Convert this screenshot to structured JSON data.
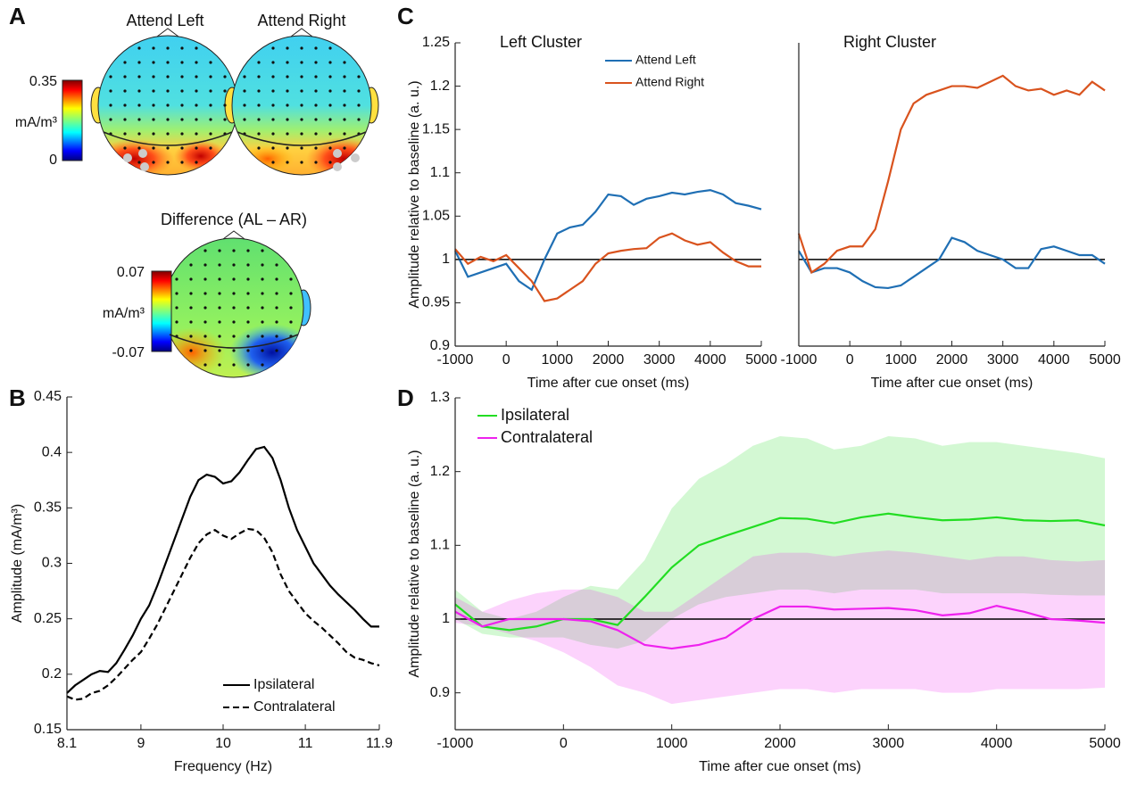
{
  "figure": {
    "panel_labels": [
      "A",
      "B",
      "C",
      "D"
    ],
    "topomaps": [
      {
        "title": "Attend Left"
      },
      {
        "title": "Attend Right"
      },
      {
        "title": "Difference (AL – AR)"
      }
    ],
    "colorbars": [
      {
        "max": 0.35,
        "unit": "mA/m³",
        "min": 0
      },
      {
        "max": 0.07,
        "unit": "mA/m³",
        "min": -0.07
      }
    ]
  },
  "chart_data": [
    {
      "type": "line",
      "xlabel": "Frequency (Hz)",
      "ylabel": "Amplitude (mA/m³)",
      "x": [
        8.1,
        8.2,
        8.3,
        8.4,
        8.5,
        8.6,
        8.7,
        8.8,
        8.9,
        9.0,
        9.1,
        9.2,
        9.3,
        9.4,
        9.5,
        9.6,
        9.7,
        9.8,
        9.9,
        10.0,
        10.1,
        10.2,
        10.3,
        10.4,
        10.5,
        10.6,
        10.7,
        10.8,
        10.9,
        11.0,
        11.1,
        11.2,
        11.3,
        11.4,
        11.5,
        11.6,
        11.7,
        11.8,
        11.9
      ],
      "series": [
        {
          "name": "Ipsilateral",
          "color": "#000000",
          "dashed": false,
          "values": [
            0.183,
            0.19,
            0.195,
            0.2,
            0.203,
            0.202,
            0.21,
            0.222,
            0.235,
            0.25,
            0.262,
            0.28,
            0.3,
            0.32,
            0.34,
            0.36,
            0.375,
            0.38,
            0.378,
            0.372,
            0.374,
            0.382,
            0.393,
            0.403,
            0.405,
            0.395,
            0.375,
            0.35,
            0.33,
            0.315,
            0.3,
            0.29,
            0.28,
            0.272,
            0.265,
            0.258,
            0.25,
            0.243,
            0.243
          ]
        },
        {
          "name": "Contralateral",
          "color": "#000000",
          "dashed": true,
          "values": [
            0.18,
            0.177,
            0.178,
            0.183,
            0.185,
            0.19,
            0.197,
            0.205,
            0.213,
            0.22,
            0.232,
            0.245,
            0.26,
            0.275,
            0.29,
            0.305,
            0.318,
            0.326,
            0.33,
            0.325,
            0.322,
            0.327,
            0.331,
            0.33,
            0.323,
            0.31,
            0.29,
            0.275,
            0.265,
            0.255,
            0.248,
            0.242,
            0.235,
            0.228,
            0.22,
            0.215,
            0.213,
            0.21,
            0.208
          ]
        }
      ],
      "xlim": [
        8.1,
        11.9
      ],
      "xticks": [
        8.1,
        9,
        10,
        11,
        11.9
      ],
      "ylim": [
        0.15,
        0.45
      ],
      "yticks": [
        0.15,
        0.2,
        0.25,
        0.3,
        0.35,
        0.4,
        0.45
      ],
      "legend": "lower right"
    },
    {
      "type": "line",
      "title": "Left Cluster",
      "xlabel": "Time after cue onset (ms)",
      "ylabel": "Amplitude relative to baseline (a. u.)",
      "x": [
        -1000,
        -750,
        -500,
        -250,
        0,
        250,
        500,
        750,
        1000,
        1250,
        1500,
        1750,
        2000,
        2250,
        2500,
        2750,
        3000,
        3250,
        3500,
        3750,
        4000,
        4250,
        4500,
        4750,
        5000
      ],
      "series": [
        {
          "name": "Attend Left",
          "color": "#1f6fb4",
          "values": [
            1.01,
            0.98,
            0.985,
            0.99,
            0.995,
            0.975,
            0.965,
            1.0,
            1.03,
            1.037,
            1.04,
            1.055,
            1.075,
            1.073,
            1.063,
            1.07,
            1.073,
            1.077,
            1.075,
            1.078,
            1.08,
            1.075,
            1.065,
            1.062,
            1.058
          ]
        },
        {
          "name": "Attend Right",
          "color": "#d9531e",
          "values": [
            1.012,
            0.995,
            1.003,
            0.998,
            1.005,
            0.99,
            0.975,
            0.952,
            0.955,
            0.965,
            0.975,
            0.995,
            1.007,
            1.01,
            1.012,
            1.013,
            1.025,
            1.03,
            1.022,
            1.017,
            1.02,
            1.008,
            0.998,
            0.992,
            0.992
          ]
        }
      ],
      "xlim": [
        -1000,
        5000
      ],
      "xticks": [
        -1000,
        0,
        1000,
        2000,
        3000,
        4000,
        5000
      ],
      "ylim": [
        0.9,
        1.25
      ],
      "yticks": [
        0.9,
        0.95,
        1,
        1.05,
        1.1,
        1.15,
        1.2,
        1.25
      ],
      "reference_line": 1,
      "legend": "upper right"
    },
    {
      "type": "line",
      "title": "Right Cluster",
      "xlabel": "Time after cue onset (ms)",
      "x": [
        -1000,
        -750,
        -500,
        -250,
        0,
        250,
        500,
        750,
        1000,
        1250,
        1500,
        1750,
        2000,
        2250,
        2500,
        2750,
        3000,
        3250,
        3500,
        3750,
        4000,
        4250,
        4500,
        4750,
        5000
      ],
      "series": [
        {
          "name": "Attend Left",
          "color": "#1f6fb4",
          "values": [
            1.01,
            0.985,
            0.99,
            0.99,
            0.985,
            0.975,
            0.968,
            0.967,
            0.97,
            0.98,
            0.99,
            1.0,
            1.025,
            1.02,
            1.01,
            1.005,
            1.0,
            0.99,
            0.99,
            1.012,
            1.015,
            1.01,
            1.005,
            1.005,
            0.995
          ]
        },
        {
          "name": "Attend Right",
          "color": "#d9531e",
          "values": [
            1.03,
            0.985,
            0.995,
            1.01,
            1.015,
            1.015,
            1.035,
            1.09,
            1.15,
            1.18,
            1.19,
            1.195,
            1.2,
            1.2,
            1.198,
            1.205,
            1.212,
            1.2,
            1.195,
            1.197,
            1.19,
            1.195,
            1.19,
            1.205,
            1.195
          ]
        }
      ],
      "xlim": [
        -1000,
        5000
      ],
      "xticks": [
        -1000,
        0,
        1000,
        2000,
        3000,
        4000,
        5000
      ],
      "ylim": [
        0.9,
        1.25
      ],
      "reference_line": 1
    },
    {
      "type": "line",
      "xlabel": "Time after cue onset (ms)",
      "ylabel": "Amplitude relative to baseline (a. u.)",
      "x": [
        -1000,
        -750,
        -500,
        -250,
        0,
        250,
        500,
        750,
        1000,
        1250,
        1500,
        1750,
        2000,
        2250,
        2500,
        2750,
        3000,
        3250,
        3500,
        3750,
        4000,
        4250,
        4500,
        4750,
        5000
      ],
      "series": [
        {
          "name": "Ipsilateral",
          "color": "#22dd22",
          "values": [
            1.02,
            0.99,
            0.985,
            0.99,
            1.0,
            1.0,
            0.992,
            1.03,
            1.07,
            1.1,
            1.113,
            1.125,
            1.137,
            1.136,
            1.13,
            1.138,
            1.143,
            1.138,
            1.134,
            1.135,
            1.138,
            1.134,
            1.133,
            1.134,
            1.127
          ],
          "lower": [
            1.0,
            0.98,
            0.975,
            0.975,
            0.975,
            0.965,
            0.96,
            0.97,
            1.0,
            1.02,
            1.03,
            1.035,
            1.04,
            1.04,
            1.035,
            1.04,
            1.04,
            1.04,
            1.035,
            1.035,
            1.035,
            1.035,
            1.033,
            1.032,
            1.032
          ],
          "upper": [
            1.04,
            1.01,
            1.0,
            1.01,
            1.03,
            1.045,
            1.04,
            1.08,
            1.15,
            1.19,
            1.21,
            1.235,
            1.248,
            1.245,
            1.23,
            1.235,
            1.248,
            1.245,
            1.235,
            1.24,
            1.24,
            1.235,
            1.23,
            1.225,
            1.218
          ]
        },
        {
          "name": "Contralateral",
          "color": "#ee22ee",
          "values": [
            1.01,
            0.99,
            1.0,
            1.0,
            1.0,
            0.997,
            0.985,
            0.965,
            0.96,
            0.965,
            0.975,
            1.0,
            1.017,
            1.017,
            1.013,
            1.014,
            1.015,
            1.012,
            1.005,
            1.008,
            1.018,
            1.01,
            1.0,
            0.998,
            0.995
          ],
          "lower": [
            0.995,
            0.99,
            0.98,
            0.97,
            0.955,
            0.935,
            0.91,
            0.9,
            0.885,
            0.89,
            0.895,
            0.9,
            0.905,
            0.905,
            0.9,
            0.905,
            0.905,
            0.905,
            0.9,
            0.9,
            0.905,
            0.905,
            0.905,
            0.905,
            0.907
          ],
          "upper": [
            1.03,
            1.01,
            1.025,
            1.035,
            1.04,
            1.04,
            1.03,
            1.01,
            1.01,
            1.035,
            1.06,
            1.085,
            1.09,
            1.09,
            1.085,
            1.09,
            1.093,
            1.09,
            1.085,
            1.08,
            1.085,
            1.085,
            1.08,
            1.078,
            1.08
          ]
        }
      ],
      "xlim": [
        -1000,
        5000
      ],
      "xticks": [
        -1000,
        0,
        1000,
        2000,
        3000,
        4000,
        5000
      ],
      "ylim": [
        0.85,
        1.3
      ],
      "yticks": [
        0.9,
        1,
        1.1,
        1.2,
        1.3
      ],
      "reference_line": 1,
      "legend": "upper left"
    }
  ]
}
